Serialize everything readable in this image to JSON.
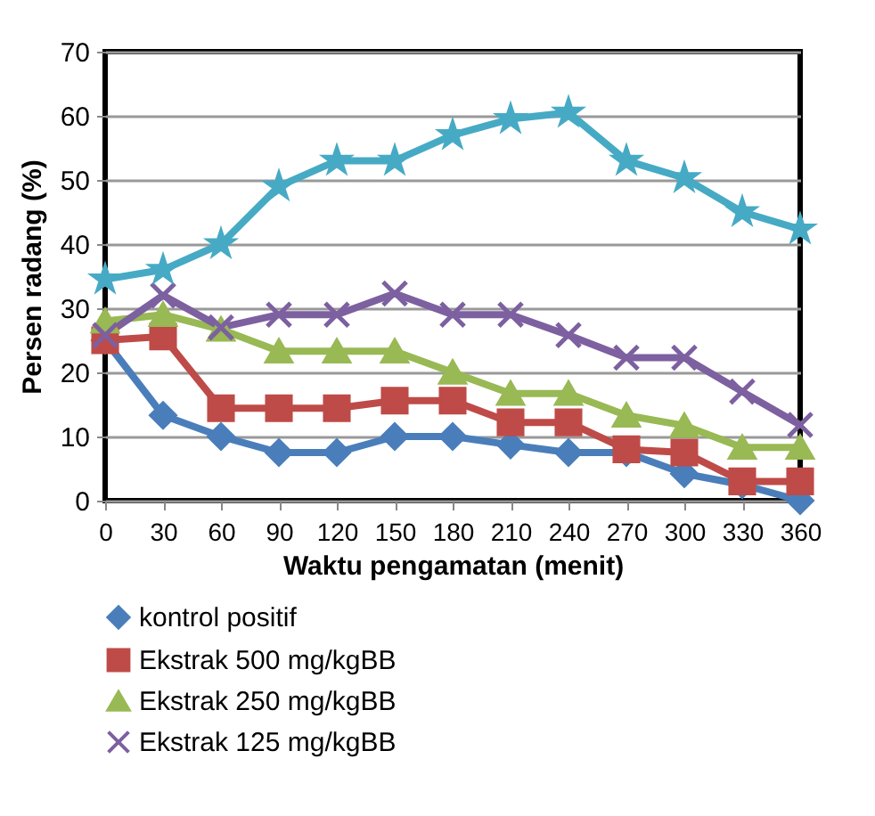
{
  "chart_data": {
    "type": "line",
    "xlabel": "Waktu pengamatan (menit)",
    "ylabel": "Persen radang (%)",
    "categories": [
      "0",
      "30",
      "60",
      "90",
      "120",
      "150",
      "180",
      "210",
      "240",
      "270",
      "300",
      "330",
      "360"
    ],
    "ylim": [
      0,
      70
    ],
    "yticks": [
      0,
      10,
      20,
      30,
      40,
      50,
      60,
      70
    ],
    "grid": "y",
    "legend": "bottom",
    "line_style": "solid",
    "series": [
      {
        "name": "kontrol positif",
        "color": "#4a7ebb",
        "marker": "diamond",
        "values": [
          25,
          13.3,
          10,
          7.5,
          7.5,
          10,
          10,
          8.7,
          7.5,
          7.5,
          4.2,
          2.5,
          0
        ]
      },
      {
        "name": "Ekstrak 500 mg/kgBB",
        "color": "#be4b48",
        "marker": "square",
        "values": [
          25,
          25.6,
          14.4,
          14.4,
          14.4,
          15.6,
          15.6,
          12.2,
          12.2,
          8,
          7.5,
          3,
          3
        ]
      },
      {
        "name": "Ekstrak 250 mg/kgBB",
        "color": "#98b954",
        "marker": "triangle",
        "values": [
          28,
          29,
          26.7,
          23.3,
          23.3,
          23.3,
          20,
          16.7,
          16.7,
          13.3,
          11.7,
          8.3,
          8.3
        ]
      },
      {
        "name": "Ekstrak 125 mg/kgBB",
        "color": "#7d60a0",
        "marker": "cross",
        "values": [
          25.8,
          32,
          27,
          29,
          29,
          32.3,
          29,
          29,
          25.8,
          22.3,
          22.3,
          17,
          11.8
        ]
      },
      {
        "color": "#46aac5",
        "marker": "star",
        "values": [
          34.5,
          36,
          40,
          49,
          53,
          53,
          57,
          59.5,
          60.5,
          53,
          50.3,
          45,
          42.3
        ]
      }
    ]
  }
}
